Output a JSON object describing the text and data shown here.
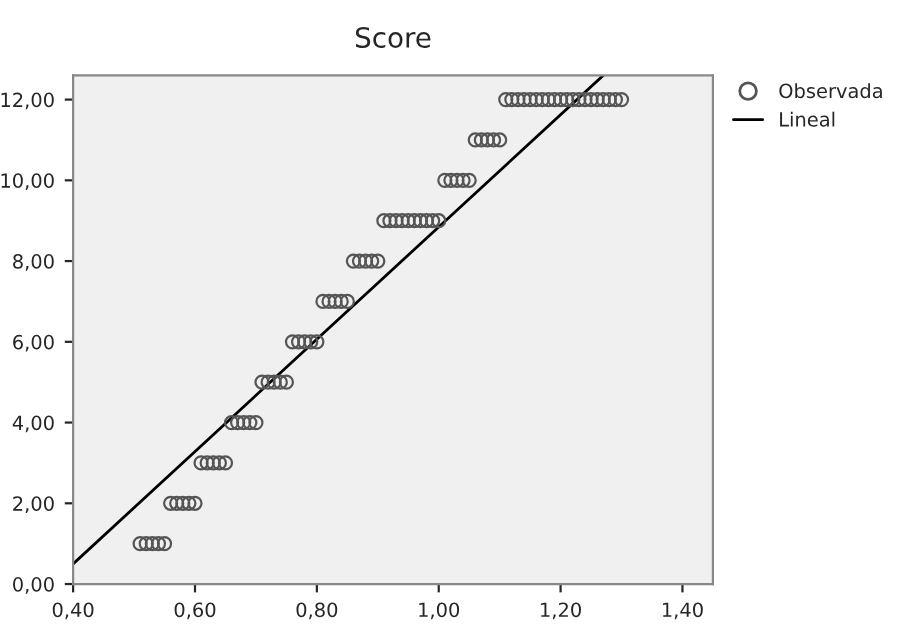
{
  "chart_data": {
    "type": "scatter",
    "title": "Score",
    "xlim": [
      0.4,
      1.45
    ],
    "ylim": [
      0,
      12.6
    ],
    "xticks": [
      {
        "value": 0.4,
        "label": "0,40"
      },
      {
        "value": 0.6,
        "label": "0,60"
      },
      {
        "value": 0.8,
        "label": "0,80"
      },
      {
        "value": 1.0,
        "label": "1,00"
      },
      {
        "value": 1.2,
        "label": "1,20"
      },
      {
        "value": 1.4,
        "label": "1,40"
      }
    ],
    "yticks": [
      {
        "value": 0,
        "label": "0,00"
      },
      {
        "value": 2,
        "label": "2,00"
      },
      {
        "value": 4,
        "label": "4,00"
      },
      {
        "value": 6,
        "label": "6,00"
      },
      {
        "value": 8,
        "label": "8,00"
      },
      {
        "value": 10,
        "label": "10,00"
      },
      {
        "value": 12,
        "label": "12,00"
      }
    ],
    "grid": false,
    "legend": "top right",
    "series": [
      {
        "name": "Observada",
        "marker": "circle",
        "color": "#555555",
        "x": [
          0.51,
          0.52,
          0.53,
          0.54,
          0.55,
          0.56,
          0.57,
          0.58,
          0.59,
          0.6,
          0.61,
          0.62,
          0.63,
          0.64,
          0.65,
          0.66,
          0.67,
          0.68,
          0.69,
          0.7,
          0.71,
          0.72,
          0.73,
          0.74,
          0.75,
          0.76,
          0.77,
          0.78,
          0.79,
          0.8,
          0.81,
          0.82,
          0.83,
          0.84,
          0.85,
          0.86,
          0.87,
          0.88,
          0.89,
          0.9,
          0.91,
          0.92,
          0.93,
          0.94,
          0.95,
          0.96,
          0.97,
          0.98,
          0.99,
          1.0,
          1.01,
          1.02,
          1.03,
          1.04,
          1.05,
          1.06,
          1.07,
          1.08,
          1.09,
          1.1,
          1.11,
          1.12,
          1.13,
          1.14,
          1.15,
          1.16,
          1.17,
          1.18,
          1.19,
          1.2,
          1.21,
          1.22,
          1.23,
          1.24,
          1.25,
          1.26,
          1.27,
          1.28,
          1.29,
          1.3
        ],
        "values": [
          1,
          1,
          1,
          1,
          1,
          2,
          2,
          2,
          2,
          2,
          3,
          3,
          3,
          3,
          3,
          4,
          4,
          4,
          4,
          4,
          5,
          5,
          5,
          5,
          5,
          6,
          6,
          6,
          6,
          6,
          7,
          7,
          7,
          7,
          7,
          8,
          8,
          8,
          8,
          8,
          9,
          9,
          9,
          9,
          9,
          9,
          9,
          9,
          9,
          9,
          10,
          10,
          10,
          10,
          10,
          11,
          11,
          11,
          11,
          11,
          12,
          12,
          12,
          12,
          12,
          12,
          12,
          12,
          12,
          12,
          12,
          12,
          12,
          12,
          12,
          12,
          12,
          12,
          12,
          12
        ]
      },
      {
        "name": "Lineal",
        "type": "line",
        "color": "#000000",
        "x": [
          0.4,
          1.27
        ],
        "values": [
          0.5,
          12.6
        ]
      }
    ]
  }
}
